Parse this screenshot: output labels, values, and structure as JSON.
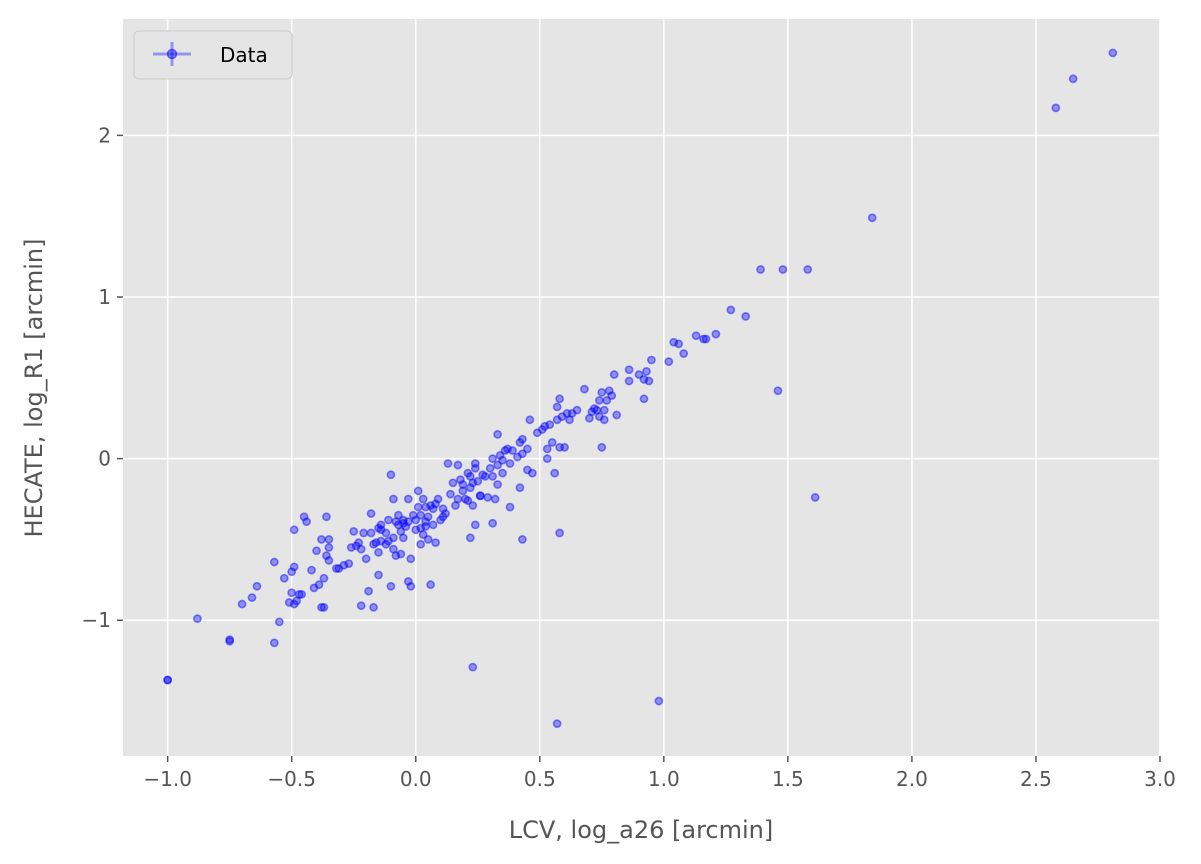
{
  "chart_data": {
    "type": "scatter",
    "title": "",
    "xlabel": "LCV, log_a26 [arcmin]",
    "ylabel": "HECATE, log_R1 [arcmin]",
    "xlim": [
      -1.18,
      3.0
    ],
    "ylim": [
      -1.84,
      2.72
    ],
    "xticks": [
      -1.0,
      -0.5,
      0.0,
      0.5,
      1.0,
      1.5,
      2.0,
      2.5,
      3.0
    ],
    "xtick_labels": [
      "−1.0",
      "−0.5",
      "0.0",
      "0.5",
      "1.0",
      "1.5",
      "2.0",
      "2.5",
      "3.0"
    ],
    "yticks": [
      -1,
      0,
      1,
      2
    ],
    "ytick_labels": [
      "−1",
      "0",
      "1",
      "2"
    ],
    "grid": true,
    "legend_position": "top-left",
    "colors": {
      "background": "#e5e5e5",
      "grid": "#ffffff",
      "marker": "#0000ff",
      "text": "#555555"
    },
    "series": [
      {
        "name": "Data",
        "points": [
          [
            -1.0,
            -1.37
          ],
          [
            -1.0,
            -1.37
          ],
          [
            -0.88,
            -0.99
          ],
          [
            -0.75,
            -1.13
          ],
          [
            -0.75,
            -1.12
          ],
          [
            -0.7,
            -0.9
          ],
          [
            -0.66,
            -0.86
          ],
          [
            -0.64,
            -0.79
          ],
          [
            -0.57,
            -0.64
          ],
          [
            -0.57,
            -1.14
          ],
          [
            -0.55,
            -1.01
          ],
          [
            -0.53,
            -0.74
          ],
          [
            -0.51,
            -0.89
          ],
          [
            -0.5,
            -0.7
          ],
          [
            -0.5,
            -0.83
          ],
          [
            -0.49,
            -0.67
          ],
          [
            -0.49,
            -0.9
          ],
          [
            -0.49,
            -0.44
          ],
          [
            -0.48,
            -0.88
          ],
          [
            -0.47,
            -0.84
          ],
          [
            -0.46,
            -0.84
          ],
          [
            -0.45,
            -0.36
          ],
          [
            -0.44,
            -0.39
          ],
          [
            -0.42,
            -0.69
          ],
          [
            -0.41,
            -0.8
          ],
          [
            -0.4,
            -0.57
          ],
          [
            -0.39,
            -0.78
          ],
          [
            -0.38,
            -0.92
          ],
          [
            -0.38,
            -0.5
          ],
          [
            -0.37,
            -0.74
          ],
          [
            -0.37,
            -0.92
          ],
          [
            -0.36,
            -0.36
          ],
          [
            -0.36,
            -0.6
          ],
          [
            -0.35,
            -0.5
          ],
          [
            -0.35,
            -0.55
          ],
          [
            -0.35,
            -0.63
          ],
          [
            -0.32,
            -0.68
          ],
          [
            -0.31,
            -0.68
          ],
          [
            -0.29,
            -0.66
          ],
          [
            -0.27,
            -0.65
          ],
          [
            -0.26,
            -0.55
          ],
          [
            -0.25,
            -0.45
          ],
          [
            -0.24,
            -0.54
          ],
          [
            -0.23,
            -0.52
          ],
          [
            -0.22,
            -0.56
          ],
          [
            -0.22,
            -0.91
          ],
          [
            -0.21,
            -0.46
          ],
          [
            -0.2,
            -0.62
          ],
          [
            -0.19,
            -0.82
          ],
          [
            -0.18,
            -0.46
          ],
          [
            -0.18,
            -0.34
          ],
          [
            -0.17,
            -0.53
          ],
          [
            -0.17,
            -0.92
          ],
          [
            -0.16,
            -0.52
          ],
          [
            -0.15,
            -0.43
          ],
          [
            -0.15,
            -0.58
          ],
          [
            -0.15,
            -0.72
          ],
          [
            -0.14,
            -0.51
          ],
          [
            -0.14,
            -0.41
          ],
          [
            -0.14,
            -0.44
          ],
          [
            -0.12,
            -0.53
          ],
          [
            -0.12,
            -0.46
          ],
          [
            -0.11,
            -0.38
          ],
          [
            -0.11,
            -0.51
          ],
          [
            -0.1,
            -0.79
          ],
          [
            -0.1,
            -0.1
          ],
          [
            -0.09,
            -0.56
          ],
          [
            -0.09,
            -0.49
          ],
          [
            -0.09,
            -0.25
          ],
          [
            -0.08,
            -0.6
          ],
          [
            -0.08,
            -0.39
          ],
          [
            -0.07,
            -0.41
          ],
          [
            -0.07,
            -0.35
          ],
          [
            -0.06,
            -0.59
          ],
          [
            -0.06,
            -0.45
          ],
          [
            -0.05,
            -0.38
          ],
          [
            -0.05,
            -0.49
          ],
          [
            -0.05,
            -0.4
          ],
          [
            -0.04,
            -0.42
          ],
          [
            -0.03,
            -0.76
          ],
          [
            -0.03,
            -0.39
          ],
          [
            -0.03,
            -0.25
          ],
          [
            -0.02,
            -0.62
          ],
          [
            -0.02,
            -0.79
          ],
          [
            -0.01,
            -0.35
          ],
          [
            0.0,
            -0.38
          ],
          [
            0.0,
            -0.44
          ],
          [
            0.01,
            -0.2
          ],
          [
            0.01,
            -0.3
          ],
          [
            0.02,
            -0.35
          ],
          [
            0.02,
            -0.53
          ],
          [
            0.02,
            -0.43
          ],
          [
            0.03,
            -0.25
          ],
          [
            0.03,
            -0.47
          ],
          [
            0.04,
            -0.3
          ],
          [
            0.04,
            -0.39
          ],
          [
            0.04,
            -0.42
          ],
          [
            0.05,
            -0.36
          ],
          [
            0.05,
            -0.5
          ],
          [
            0.06,
            -0.29
          ],
          [
            0.06,
            -0.78
          ],
          [
            0.07,
            -0.31
          ],
          [
            0.07,
            -0.41
          ],
          [
            0.08,
            -0.52
          ],
          [
            0.08,
            -0.28
          ],
          [
            0.09,
            -0.25
          ],
          [
            0.1,
            -0.38
          ],
          [
            0.11,
            -0.36
          ],
          [
            0.11,
            -0.31
          ],
          [
            0.12,
            -0.34
          ],
          [
            0.13,
            -0.03
          ],
          [
            0.14,
            -0.22
          ],
          [
            0.15,
            -0.15
          ],
          [
            0.16,
            -0.29
          ],
          [
            0.17,
            -0.04
          ],
          [
            0.17,
            -0.25
          ],
          [
            0.18,
            -0.13
          ],
          [
            0.19,
            -0.2
          ],
          [
            0.19,
            -0.16
          ],
          [
            0.2,
            -0.25
          ],
          [
            0.21,
            -0.09
          ],
          [
            0.21,
            -0.26
          ],
          [
            0.22,
            -0.49
          ],
          [
            0.22,
            -0.11
          ],
          [
            0.22,
            -0.18
          ],
          [
            0.23,
            -0.15
          ],
          [
            0.23,
            -0.29
          ],
          [
            0.23,
            -1.29
          ],
          [
            0.24,
            -0.03
          ],
          [
            0.24,
            -0.06
          ],
          [
            0.24,
            -0.41
          ],
          [
            0.25,
            -0.14
          ],
          [
            0.26,
            -0.23
          ],
          [
            0.26,
            -0.23
          ],
          [
            0.27,
            -0.1
          ],
          [
            0.28,
            -0.11
          ],
          [
            0.29,
            -0.24
          ],
          [
            0.3,
            -0.06
          ],
          [
            0.31,
            -0.11
          ],
          [
            0.31,
            0.0
          ],
          [
            0.31,
            -0.4
          ],
          [
            0.32,
            -0.25
          ],
          [
            0.33,
            -0.04
          ],
          [
            0.33,
            -0.16
          ],
          [
            0.33,
            0.15
          ],
          [
            0.34,
            0.02
          ],
          [
            0.35,
            -0.09
          ],
          [
            0.35,
            -0.01
          ],
          [
            0.36,
            0.05
          ],
          [
            0.37,
            0.06
          ],
          [
            0.38,
            -0.03
          ],
          [
            0.38,
            -0.3
          ],
          [
            0.39,
            0.05
          ],
          [
            0.41,
            0.01
          ],
          [
            0.42,
            0.1
          ],
          [
            0.42,
            -0.18
          ],
          [
            0.43,
            0.03
          ],
          [
            0.43,
            0.12
          ],
          [
            0.43,
            -0.5
          ],
          [
            0.45,
            0.06
          ],
          [
            0.45,
            -0.07
          ],
          [
            0.46,
            0.24
          ],
          [
            0.47,
            -0.09
          ],
          [
            0.49,
            0.16
          ],
          [
            0.51,
            0.18
          ],
          [
            0.52,
            0.2
          ],
          [
            0.53,
            0.0
          ],
          [
            0.53,
            0.06
          ],
          [
            0.54,
            0.21
          ],
          [
            0.55,
            0.1
          ],
          [
            0.56,
            -0.09
          ],
          [
            0.57,
            0.24
          ],
          [
            0.57,
            0.32
          ],
          [
            0.58,
            0.37
          ],
          [
            0.58,
            0.07
          ],
          [
            0.58,
            -0.46
          ],
          [
            0.57,
            -1.64
          ],
          [
            0.59,
            0.26
          ],
          [
            0.6,
            0.07
          ],
          [
            0.61,
            0.28
          ],
          [
            0.62,
            0.24
          ],
          [
            0.63,
            0.28
          ],
          [
            0.65,
            0.3
          ],
          [
            0.68,
            0.43
          ],
          [
            0.7,
            0.25
          ],
          [
            0.71,
            0.29
          ],
          [
            0.72,
            0.31
          ],
          [
            0.73,
            0.3
          ],
          [
            0.74,
            0.36
          ],
          [
            0.74,
            0.26
          ],
          [
            0.75,
            0.41
          ],
          [
            0.75,
            0.07
          ],
          [
            0.76,
            0.24
          ],
          [
            0.76,
            0.3
          ],
          [
            0.77,
            0.36
          ],
          [
            0.78,
            0.42
          ],
          [
            0.79,
            0.39
          ],
          [
            0.8,
            0.52
          ],
          [
            0.81,
            0.27
          ],
          [
            0.86,
            0.48
          ],
          [
            0.86,
            0.55
          ],
          [
            0.9,
            0.52
          ],
          [
            0.92,
            0.49
          ],
          [
            0.92,
            0.37
          ],
          [
            0.93,
            0.54
          ],
          [
            0.94,
            0.48
          ],
          [
            0.95,
            0.61
          ],
          [
            0.98,
            -1.5
          ],
          [
            1.02,
            0.6
          ],
          [
            1.04,
            0.72
          ],
          [
            1.06,
            0.71
          ],
          [
            1.08,
            0.65
          ],
          [
            1.13,
            0.76
          ],
          [
            1.16,
            0.74
          ],
          [
            1.17,
            0.74
          ],
          [
            1.21,
            0.77
          ],
          [
            1.27,
            0.92
          ],
          [
            1.33,
            0.88
          ],
          [
            1.39,
            1.17
          ],
          [
            1.46,
            0.42
          ],
          [
            1.48,
            1.17
          ],
          [
            1.58,
            1.17
          ],
          [
            1.61,
            -0.24
          ],
          [
            1.84,
            1.49
          ],
          [
            2.58,
            2.17
          ],
          [
            2.65,
            2.35
          ],
          [
            2.81,
            2.51
          ]
        ]
      }
    ]
  }
}
